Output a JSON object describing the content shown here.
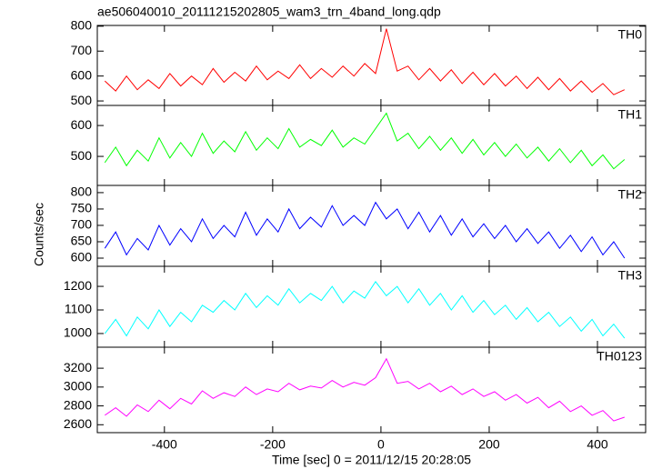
{
  "chart_data": [
    {
      "type": "line",
      "title": "ae506040010_20111215202805_wam3_trn_4band_long.qdp",
      "x": [
        -510,
        -490,
        -470,
        -450,
        -430,
        -410,
        -390,
        -370,
        -350,
        -330,
        -310,
        -290,
        -270,
        -250,
        -230,
        -210,
        -190,
        -170,
        -150,
        -130,
        -110,
        -90,
        -70,
        -50,
        -30,
        -10,
        10,
        30,
        50,
        70,
        90,
        110,
        130,
        150,
        170,
        190,
        210,
        230,
        250,
        270,
        290,
        310,
        330,
        350,
        370,
        390,
        410,
        430,
        450
      ],
      "series": [
        {
          "name": "TH0",
          "color": "#ff0000",
          "values": [
            580,
            540,
            600,
            545,
            585,
            550,
            610,
            560,
            600,
            565,
            630,
            575,
            615,
            580,
            640,
            585,
            620,
            590,
            645,
            590,
            630,
            595,
            640,
            600,
            650,
            610,
            790,
            620,
            640,
            585,
            630,
            580,
            625,
            570,
            615,
            565,
            610,
            560,
            600,
            550,
            595,
            545,
            590,
            540,
            580,
            535,
            570,
            525,
            545
          ]
        }
      ],
      "ylim": [
        482,
        803
      ],
      "yticks": [
        500,
        600,
        700,
        800
      ]
    },
    {
      "type": "line",
      "x": [
        -510,
        -490,
        -470,
        -450,
        -430,
        -410,
        -390,
        -370,
        -350,
        -330,
        -310,
        -290,
        -270,
        -250,
        -230,
        -210,
        -190,
        -170,
        -150,
        -130,
        -110,
        -90,
        -70,
        -50,
        -30,
        -10,
        10,
        30,
        50,
        70,
        90,
        110,
        130,
        150,
        170,
        190,
        210,
        230,
        250,
        270,
        290,
        310,
        330,
        350,
        370,
        390,
        410,
        430,
        450
      ],
      "series": [
        {
          "name": "TH1",
          "color": "#00ff00",
          "values": [
            480,
            530,
            470,
            520,
            485,
            560,
            495,
            545,
            500,
            575,
            510,
            550,
            515,
            580,
            520,
            560,
            525,
            590,
            530,
            555,
            535,
            585,
            530,
            560,
            540,
            590,
            640,
            550,
            575,
            525,
            565,
            520,
            560,
            510,
            555,
            505,
            545,
            500,
            540,
            495,
            530,
            485,
            525,
            480,
            520,
            470,
            505,
            460,
            490
          ]
        }
      ],
      "ylim": [
        406,
        665
      ],
      "yticks": [
        500,
        600
      ]
    },
    {
      "type": "line",
      "ylabel": "Counts/sec",
      "x": [
        -510,
        -490,
        -470,
        -450,
        -430,
        -410,
        -390,
        -370,
        -350,
        -330,
        -310,
        -290,
        -270,
        -250,
        -230,
        -210,
        -190,
        -170,
        -150,
        -130,
        -110,
        -90,
        -70,
        -50,
        -30,
        -10,
        10,
        30,
        50,
        70,
        90,
        110,
        130,
        150,
        170,
        190,
        210,
        230,
        250,
        270,
        290,
        310,
        330,
        350,
        370,
        390,
        410,
        430,
        450
      ],
      "series": [
        {
          "name": "TH2",
          "color": "#0000ff",
          "values": [
            630,
            680,
            610,
            660,
            625,
            700,
            640,
            690,
            650,
            720,
            660,
            700,
            665,
            740,
            670,
            720,
            680,
            750,
            690,
            725,
            695,
            760,
            700,
            730,
            700,
            770,
            720,
            750,
            690,
            740,
            680,
            730,
            670,
            720,
            665,
            705,
            660,
            700,
            650,
            690,
            645,
            680,
            630,
            670,
            620,
            665,
            610,
            650,
            600
          ]
        }
      ],
      "ylim": [
        575,
        822
      ],
      "yticks": [
        600,
        650,
        700,
        750,
        800
      ]
    },
    {
      "type": "line",
      "x": [
        -510,
        -490,
        -470,
        -450,
        -430,
        -410,
        -390,
        -370,
        -350,
        -330,
        -310,
        -290,
        -270,
        -250,
        -230,
        -210,
        -190,
        -170,
        -150,
        -130,
        -110,
        -90,
        -70,
        -50,
        -30,
        -10,
        10,
        30,
        50,
        70,
        90,
        110,
        130,
        150,
        170,
        190,
        210,
        230,
        250,
        270,
        290,
        310,
        330,
        350,
        370,
        390,
        410,
        430,
        450
      ],
      "series": [
        {
          "name": "TH3",
          "color": "#00ffff",
          "values": [
            1000,
            1060,
            990,
            1070,
            1020,
            1100,
            1030,
            1090,
            1050,
            1120,
            1090,
            1140,
            1100,
            1170,
            1110,
            1160,
            1120,
            1190,
            1130,
            1170,
            1140,
            1200,
            1130,
            1180,
            1150,
            1220,
            1160,
            1200,
            1130,
            1190,
            1120,
            1170,
            1100,
            1160,
            1090,
            1140,
            1080,
            1120,
            1060,
            1110,
            1050,
            1090,
            1030,
            1070,
            1010,
            1060,
            990,
            1040,
            980
          ]
        }
      ],
      "ylim": [
        942,
        1285
      ],
      "yticks": [
        1000,
        1100,
        1200
      ]
    },
    {
      "type": "line",
      "xlabel": "Time [sec] 0 = 2011/12/15 20:28:05",
      "x": [
        -510,
        -490,
        -470,
        -450,
        -430,
        -410,
        -390,
        -370,
        -350,
        -330,
        -310,
        -290,
        -270,
        -250,
        -230,
        -210,
        -190,
        -170,
        -150,
        -130,
        -110,
        -90,
        -70,
        -50,
        -30,
        -10,
        10,
        30,
        50,
        70,
        90,
        110,
        130,
        150,
        170,
        190,
        210,
        230,
        250,
        270,
        290,
        310,
        330,
        350,
        370,
        390,
        410,
        430,
        450
      ],
      "series": [
        {
          "name": "TH0123",
          "color": "#ff00ff",
          "values": [
            2700,
            2780,
            2690,
            2810,
            2740,
            2860,
            2770,
            2880,
            2820,
            2960,
            2880,
            2940,
            2900,
            3000,
            2920,
            2980,
            2950,
            3040,
            2970,
            3010,
            2990,
            3070,
            3000,
            3050,
            3020,
            3100,
            3300,
            3040,
            3060,
            2980,
            3040,
            2950,
            3010,
            2920,
            2980,
            2900,
            2950,
            2860,
            2920,
            2830,
            2890,
            2780,
            2850,
            2740,
            2800,
            2700,
            2750,
            2640,
            2680
          ]
        }
      ],
      "ylim": [
        2516,
        3423
      ],
      "yticks": [
        2600,
        2800,
        3000,
        3200
      ],
      "xlim": [
        -524,
        489
      ],
      "xticks": [
        -400,
        -200,
        0,
        200,
        400
      ]
    }
  ]
}
